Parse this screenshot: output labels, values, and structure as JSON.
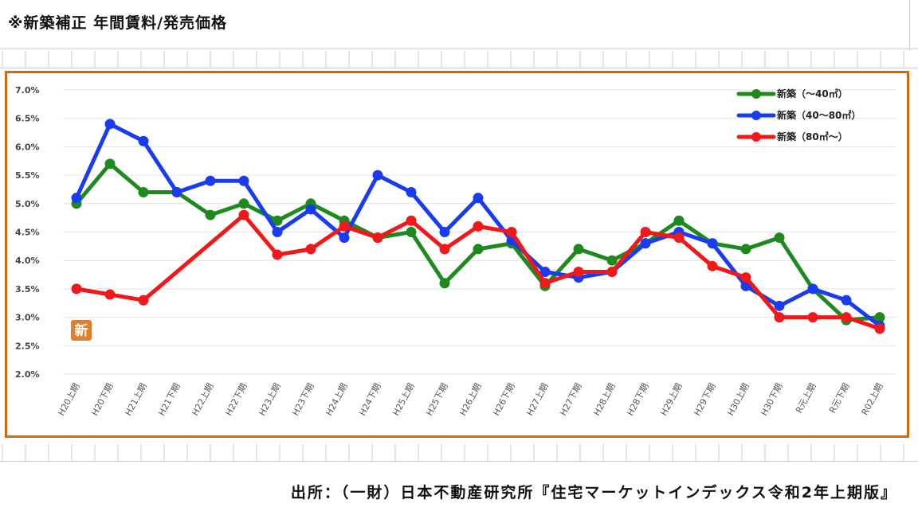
{
  "header": {
    "title": "※新築補正 年間賃料/発売価格"
  },
  "footer": {
    "source": "出所：（一財）日本不動産研究所『住宅マーケットインデックス令和2年上期版』"
  },
  "badge": {
    "text": "新"
  },
  "colors": {
    "frame": "#d06a10",
    "grid_lines": "#cccccc",
    "badge": "#e07f30"
  },
  "chart_data": {
    "type": "line",
    "title": "",
    "xlabel": "",
    "ylabel": "",
    "ylim": [
      2.0,
      7.0
    ],
    "yticks": [
      "2.0%",
      "2.5%",
      "3.0%",
      "3.5%",
      "4.0%",
      "4.5%",
      "5.0%",
      "5.5%",
      "6.0%",
      "6.5%",
      "7.0%"
    ],
    "grid": "horizontal gridlines",
    "legend_position": "top-right",
    "categories": [
      "H20上期",
      "H20下期",
      "H21上期",
      "H21下期",
      "H22上期",
      "H22下期",
      "H23上期",
      "H23下期",
      "H24上期",
      "H24下期",
      "H25上期",
      "H25下期",
      "H26上期",
      "H26下期",
      "H27上期",
      "H27下期",
      "H28上期",
      "H28下期",
      "H29上期",
      "H29下期",
      "H30上期",
      "H30下期",
      "R元上期",
      "R元下期",
      "R02上期"
    ],
    "series": [
      {
        "name": "新築（～40㎡）",
        "color": "#1e8a1e",
        "values": [
          5.0,
          5.7,
          5.2,
          5.2,
          4.8,
          5.0,
          4.7,
          5.0,
          4.7,
          4.4,
          4.5,
          3.6,
          4.2,
          4.3,
          3.55,
          4.2,
          4.0,
          4.3,
          4.7,
          4.3,
          4.2,
          4.4,
          3.5,
          2.95,
          3.0
        ]
      },
      {
        "name": "新築（40～80㎡）",
        "color": "#1a3cf0",
        "values": [
          5.1,
          6.4,
          6.1,
          5.2,
          5.4,
          5.4,
          4.5,
          4.9,
          4.4,
          5.5,
          5.2,
          4.5,
          5.1,
          4.35,
          3.8,
          3.7,
          3.8,
          4.3,
          4.5,
          4.3,
          3.55,
          3.2,
          3.5,
          3.3,
          2.85
        ]
      },
      {
        "name": "新築（80㎡～）",
        "color": "#f01818",
        "values": [
          3.5,
          3.4,
          3.3,
          null,
          null,
          4.8,
          4.1,
          4.2,
          4.6,
          4.4,
          4.7,
          4.2,
          4.6,
          4.5,
          3.6,
          3.8,
          3.8,
          4.5,
          4.4,
          3.9,
          3.7,
          3.0,
          3.0,
          3.0,
          2.8
        ]
      }
    ]
  }
}
